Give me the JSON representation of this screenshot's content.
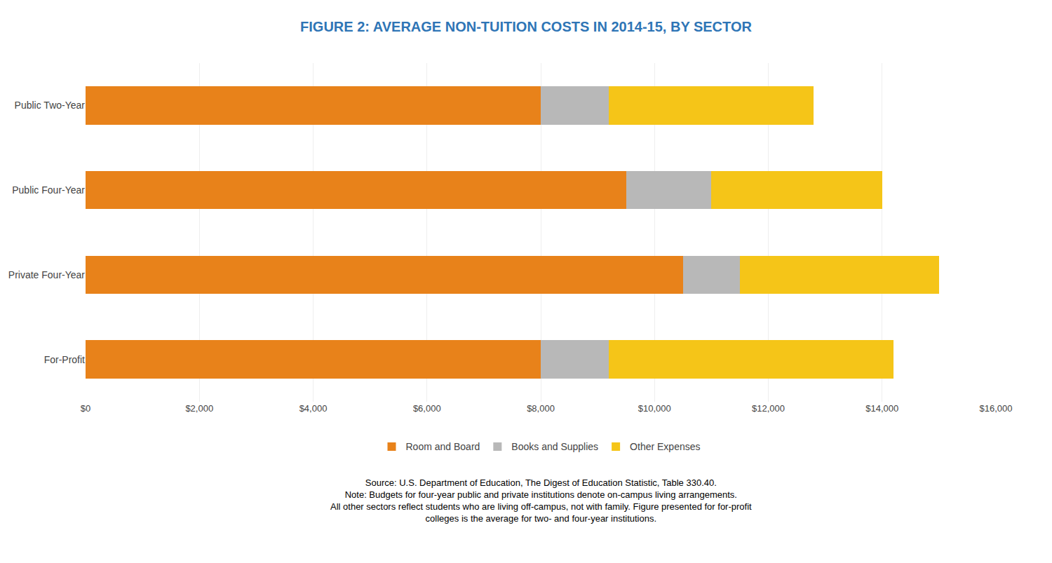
{
  "chart_data": {
    "type": "bar",
    "orientation": "horizontal",
    "stacked": true,
    "title": "FIGURE 2: AVERAGE NON-TUITION COSTS IN 2014-15, BY SECTOR",
    "categories": [
      "Public Two-Year",
      "Public Four-Year",
      "Private Four-Year",
      "For-Profit"
    ],
    "series": [
      {
        "name": "Room and Board",
        "color": "#E8821A",
        "values": [
          8000,
          9500,
          10500,
          8000
        ]
      },
      {
        "name": "Books and Supplies",
        "color": "#B8B8B8",
        "values": [
          1200,
          1500,
          1000,
          1200
        ]
      },
      {
        "name": "Other Expenses",
        "color": "#F5C518",
        "values": [
          3600,
          3000,
          3500,
          5000
        ]
      }
    ],
    "xlim": [
      0,
      16000
    ],
    "xticks": [
      {
        "value": 0,
        "label": "$0"
      },
      {
        "value": 2000,
        "label": "$2,000"
      },
      {
        "value": 4000,
        "label": "$4,000"
      },
      {
        "value": 6000,
        "label": "$6,000"
      },
      {
        "value": 8000,
        "label": "$8,000"
      },
      {
        "value": 10000,
        "label": "$10,000"
      },
      {
        "value": 12000,
        "label": "$12,000"
      },
      {
        "value": 14000,
        "label": "$14,000"
      },
      {
        "value": 16000,
        "label": "$16,000"
      }
    ],
    "grid": true,
    "legend": "bottom",
    "annotations": [
      "Source: U.S. Department of Education, The Digest of Education Statistic, Table 330.40.",
      "Note: Budgets for four-year public and private institutions denote on-campus living arrangements.",
      "All other sectors reflect students who are living off-campus, not with family. Figure presented for for-profit",
      "colleges is the average for two- and four-year institutions."
    ]
  }
}
